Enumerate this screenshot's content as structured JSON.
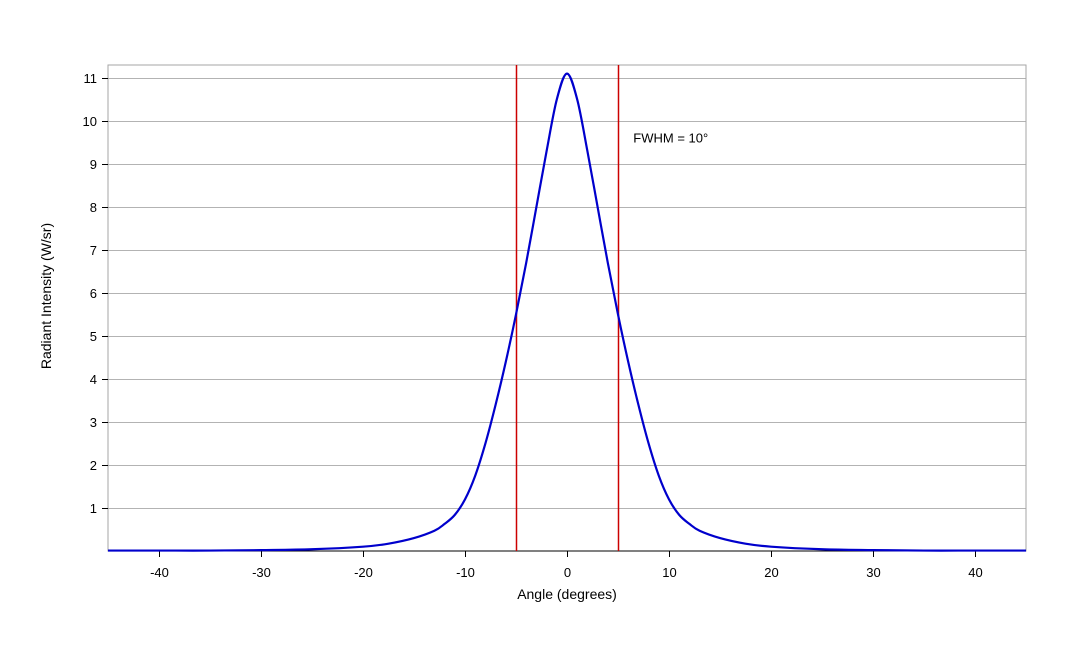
{
  "chart_data": {
    "type": "line",
    "title": "",
    "xlabel": "Angle (degrees)",
    "ylabel": "Radiant Intensity (W/sr)",
    "xlim": [
      -45,
      45
    ],
    "ylim": [
      0,
      11.3
    ],
    "x_ticks": [
      -40,
      -30,
      -20,
      -10,
      0,
      10,
      20,
      30,
      40
    ],
    "x_tick_labels": [
      "-40",
      "-30",
      "-20",
      "-10",
      "0",
      "10",
      "20",
      "30",
      "40"
    ],
    "y_ticks": [
      1,
      2,
      3,
      4,
      5,
      6,
      7,
      8,
      9,
      10,
      11
    ],
    "y_tick_labels": [
      "1",
      "2",
      "3",
      "4",
      "5",
      "6",
      "7",
      "8",
      "9",
      "10",
      "11"
    ],
    "grid": true,
    "series": [
      {
        "color": "#0000cc",
        "x": [
          -45,
          -40,
          -35,
          -30,
          -25,
          -20,
          -17.5,
          -15,
          -13,
          -12,
          -11,
          -10,
          -9,
          -8,
          -7,
          -6,
          -5,
          -4,
          -3,
          -2,
          -1,
          0,
          1,
          2,
          3,
          4,
          5,
          6,
          7,
          8,
          9,
          10,
          11,
          12,
          13,
          15,
          17.5,
          20,
          25,
          30,
          35,
          40,
          45
        ],
        "y": [
          0.01,
          0.01,
          0.01,
          0.02,
          0.04,
          0.1,
          0.17,
          0.3,
          0.47,
          0.63,
          0.84,
          1.2,
          1.75,
          2.5,
          3.4,
          4.4,
          5.5,
          6.7,
          8.0,
          9.3,
          10.5,
          11.1,
          10.5,
          9.3,
          8.0,
          6.7,
          5.5,
          4.4,
          3.4,
          2.5,
          1.75,
          1.2,
          0.84,
          0.63,
          0.47,
          0.3,
          0.17,
          0.1,
          0.04,
          0.02,
          0.01,
          0.01,
          0.01
        ]
      }
    ],
    "markers": [
      {
        "x": -5,
        "color": "#cc0000"
      },
      {
        "x": 5,
        "color": "#cc0000"
      }
    ],
    "annotations": [
      {
        "text": "FWHM = 10°",
        "x": 6.5,
        "y": 9.5
      }
    ]
  }
}
